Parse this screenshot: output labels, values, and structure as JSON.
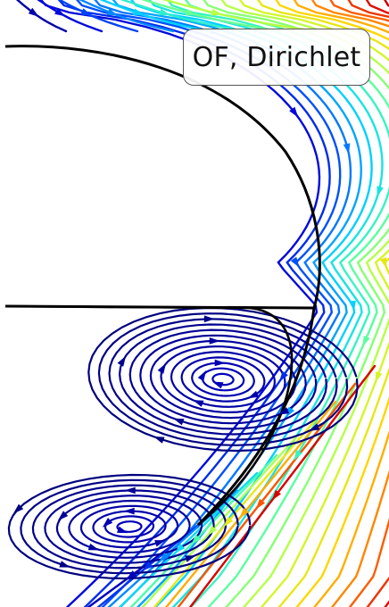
{
  "legend": {
    "label": "OF, Dirichlet"
  },
  "colors": {
    "boundary": "#000000",
    "colormap": [
      "#00007f",
      "#0000d9",
      "#0060ff",
      "#00d4ff",
      "#4dffaa",
      "#c8ff36",
      "#ffd500",
      "#ff6a00",
      "#d90000",
      "#7f0000"
    ]
  },
  "streamline_groups": [
    {
      "name": "outer-flow-around-cylinder",
      "direction": "downward"
    },
    {
      "name": "upper-recirculation-vortex",
      "direction": "clockwise"
    },
    {
      "name": "lower-recirculation-vortex",
      "direction": "counter-clockwise"
    }
  ]
}
